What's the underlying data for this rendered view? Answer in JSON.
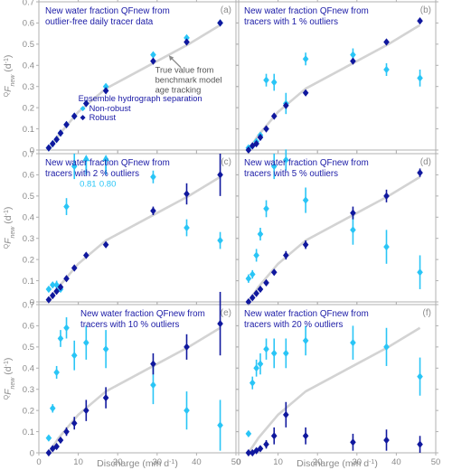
{
  "figure": {
    "y_axis_label": "Fnew (d-1)",
    "x_axis_label": "Discharge (mm d",
    "x_axis_label_sup": "-1",
    "x_axis_label_close": ")",
    "colors": {
      "true_line": "#d3d3d3",
      "non_robust": "#29c5f6",
      "robust": "#10189e",
      "title_text": "#1a1aa6",
      "axis": "#b0b0b0",
      "tick_text": "#8a8a8a",
      "annotation_text": "#555555"
    }
  },
  "chart_data": [
    {
      "type": "scatter",
      "panel": "(a)",
      "title_lines": [
        "New water fraction QFnew from",
        "outlier-free daily tracer data"
      ],
      "xlim": [
        0,
        50
      ],
      "ylim": [
        0,
        0.7
      ],
      "xticks": [
        0,
        10,
        20,
        30,
        40,
        50
      ],
      "yticks": [
        0,
        0.1,
        0.2,
        0.3,
        0.4,
        0.5,
        0.6,
        0.7
      ],
      "annotations": [
        "True value from",
        "benchmark model",
        "age tracking"
      ],
      "legend": {
        "title": "Ensemble hydrograph separation",
        "entries": [
          "Non-robust",
          "Robust"
        ]
      },
      "true_value": {
        "x": [
          2.5,
          5,
          10,
          17,
          29,
          38,
          46
        ],
        "y": [
          0.0,
          0.07,
          0.18,
          0.29,
          0.41,
          0.5,
          0.59
        ]
      },
      "series": [
        {
          "name": "Non-robust",
          "x": [
            2.5,
            3.5,
            4.5,
            5.5,
            7,
            9,
            12,
            17,
            29,
            37.5,
            46
          ],
          "y": [
            0.01,
            0.03,
            0.05,
            0.08,
            0.12,
            0.16,
            0.22,
            0.3,
            0.45,
            0.53,
            0.6
          ],
          "err": [
            0,
            0,
            0,
            0,
            0,
            0,
            0,
            0,
            0,
            0,
            0
          ]
        },
        {
          "name": "Robust",
          "x": [
            2.5,
            3.5,
            4.5,
            5.5,
            7,
            9,
            12,
            17,
            29,
            37.5,
            46
          ],
          "y": [
            0.01,
            0.03,
            0.05,
            0.08,
            0.12,
            0.16,
            0.22,
            0.28,
            0.42,
            0.51,
            0.6
          ],
          "err": [
            0,
            0,
            0,
            0,
            0,
            0,
            0,
            0,
            0,
            0.01,
            0.01
          ]
        }
      ]
    },
    {
      "type": "scatter",
      "panel": "(b)",
      "title_lines": [
        "New water fraction QFnew from",
        "tracers with 1 % outliers"
      ],
      "xlim": [
        0,
        50
      ],
      "ylim": [
        0,
        0.7
      ],
      "xticks": [
        0,
        10,
        20,
        30,
        40,
        50
      ],
      "yticks": [
        0,
        0.1,
        0.2,
        0.3,
        0.4,
        0.5,
        0.6,
        0.7
      ],
      "true_value": {
        "x": [
          2.5,
          5,
          10,
          17,
          29,
          38,
          46
        ],
        "y": [
          0.0,
          0.07,
          0.18,
          0.29,
          0.41,
          0.5,
          0.59
        ]
      },
      "series": [
        {
          "name": "Non-robust",
          "x": [
            2.5,
            3.5,
            4.5,
            5.5,
            7,
            9,
            12,
            17,
            29,
            37.5,
            46
          ],
          "y": [
            0.01,
            0.02,
            0.04,
            0.07,
            0.33,
            0.32,
            0.22,
            0.43,
            0.45,
            0.38,
            0.34
          ],
          "err": [
            0,
            0,
            0,
            0.01,
            0.03,
            0.04,
            0.05,
            0.03,
            0.03,
            0.03,
            0.04
          ]
        },
        {
          "name": "Robust",
          "x": [
            2.5,
            3.5,
            4.5,
            5.5,
            7,
            9,
            12,
            17,
            29,
            37.5,
            46
          ],
          "y": [
            0.0,
            0.02,
            0.03,
            0.06,
            0.1,
            0.16,
            0.21,
            0.27,
            0.42,
            0.51,
            0.61
          ],
          "err": [
            0,
            0,
            0,
            0.01,
            0.01,
            0.01,
            0.01,
            0.01,
            0.01,
            0.01,
            0.01
          ]
        }
      ]
    },
    {
      "type": "scatter",
      "panel": "(c)",
      "title_lines": [
        "New water fraction QFnew from",
        "tracers with 2 % outliers"
      ],
      "xlim": [
        0,
        50
      ],
      "ylim": [
        0,
        0.7
      ],
      "xticks": [
        0,
        10,
        20,
        30,
        40,
        50
      ],
      "yticks": [
        0,
        0.1,
        0.2,
        0.3,
        0.4,
        0.5,
        0.6,
        0.7
      ],
      "offscale": [
        {
          "x": 12,
          "label": "0.81"
        },
        {
          "x": 17,
          "label": "0.80"
        }
      ],
      "true_value": {
        "x": [
          2.5,
          5,
          10,
          17,
          29,
          38,
          46
        ],
        "y": [
          0.0,
          0.07,
          0.18,
          0.29,
          0.41,
          0.5,
          0.59
        ]
      },
      "series": [
        {
          "name": "Non-robust",
          "x": [
            2.5,
            3.5,
            4.5,
            5.5,
            7,
            9,
            29,
            37.5,
            46
          ],
          "y": [
            0.06,
            0.08,
            0.08,
            0.06,
            0.45,
            0.64,
            0.59,
            0.35,
            0.29
          ],
          "err": [
            0,
            0.01,
            0.02,
            0.01,
            0.04,
            0.06,
            0.03,
            0.04,
            0.04
          ]
        },
        {
          "name": "Robust",
          "x": [
            2.5,
            3.5,
            4.5,
            5.5,
            7,
            9,
            12,
            17,
            29,
            37.5,
            46
          ],
          "y": [
            0.01,
            0.03,
            0.05,
            0.07,
            0.11,
            0.16,
            0.22,
            0.27,
            0.43,
            0.51,
            0.6
          ],
          "err": [
            0,
            0,
            0,
            0.01,
            0.01,
            0.01,
            0.01,
            0.01,
            0.02,
            0.05,
            0.1
          ]
        }
      ]
    },
    {
      "type": "scatter",
      "panel": "(d)",
      "title_lines": [
        "New water fraction QFnew from",
        "tracers with 5 % outliers"
      ],
      "xlim": [
        0,
        50
      ],
      "ylim": [
        0,
        0.7
      ],
      "xticks": [
        0,
        10,
        20,
        30,
        40,
        50
      ],
      "yticks": [
        0,
        0.1,
        0.2,
        0.3,
        0.4,
        0.5,
        0.6,
        0.7
      ],
      "true_value": {
        "x": [
          2.5,
          5,
          10,
          17,
          29,
          38,
          46
        ],
        "y": [
          0.0,
          0.07,
          0.18,
          0.29,
          0.41,
          0.5,
          0.59
        ]
      },
      "series": [
        {
          "name": "Non-robust",
          "x": [
            2.5,
            3.5,
            4.5,
            5.5,
            7,
            9,
            12,
            17,
            29,
            37.5,
            46
          ],
          "y": [
            0.11,
            0.13,
            0.22,
            0.32,
            0.44,
            0.64,
            0.67,
            0.48,
            0.34,
            0.26,
            0.14
          ],
          "err": [
            0.02,
            0.02,
            0.03,
            0.03,
            0.04,
            0.06,
            0.05,
            0.06,
            0.07,
            0.08,
            0.08
          ]
        },
        {
          "name": "Robust",
          "x": [
            2.5,
            3.5,
            4.5,
            5.5,
            7,
            9,
            12,
            17,
            29,
            37.5,
            46
          ],
          "y": [
            0.0,
            0.02,
            0.04,
            0.06,
            0.09,
            0.14,
            0.22,
            0.27,
            0.42,
            0.5,
            0.61
          ],
          "err": [
            0,
            0,
            0.01,
            0.01,
            0.01,
            0.01,
            0.02,
            0.02,
            0.03,
            0.03,
            0.02
          ]
        }
      ]
    },
    {
      "type": "scatter",
      "panel": "(e)",
      "title_lines": [
        "New water fraction QFnew from",
        "tracers with 10 % outliers"
      ],
      "xlim": [
        0,
        50
      ],
      "ylim": [
        0,
        0.7
      ],
      "xticks": [
        0,
        10,
        20,
        30,
        40,
        50
      ],
      "yticks": [
        0,
        0.1,
        0.2,
        0.3,
        0.4,
        0.5,
        0.6,
        0.7
      ],
      "true_value": {
        "x": [
          2.5,
          5,
          10,
          17,
          29,
          38,
          46
        ],
        "y": [
          0.0,
          0.07,
          0.18,
          0.29,
          0.41,
          0.5,
          0.59
        ]
      },
      "series": [
        {
          "name": "Non-robust",
          "x": [
            2.5,
            3.5,
            4.5,
            5.5,
            7,
            9,
            12,
            17,
            29,
            37.5,
            46
          ],
          "y": [
            0.07,
            0.21,
            0.38,
            0.54,
            0.59,
            0.46,
            0.52,
            0.49,
            0.32,
            0.2,
            0.13
          ],
          "err": [
            0,
            0.02,
            0.03,
            0.04,
            0.05,
            0.07,
            0.08,
            0.09,
            0.09,
            0.09,
            0.12
          ]
        },
        {
          "name": "Robust",
          "x": [
            2.5,
            3.5,
            4.5,
            5.5,
            7,
            9,
            12,
            17,
            29,
            37.5,
            46
          ],
          "y": [
            0.0,
            0.02,
            0.03,
            0.06,
            0.1,
            0.14,
            0.2,
            0.26,
            0.42,
            0.5,
            0.61
          ],
          "err": [
            0,
            0,
            0.01,
            0.01,
            0.02,
            0.03,
            0.05,
            0.05,
            0.05,
            0.06,
            0.15
          ]
        }
      ]
    },
    {
      "type": "scatter",
      "panel": "(f)",
      "title_lines": [
        "New water fraction QFnew from",
        "tracers with 20 % outliers"
      ],
      "xlim": [
        0,
        50
      ],
      "ylim": [
        0,
        0.7
      ],
      "xticks": [
        0,
        10,
        20,
        30,
        40,
        50
      ],
      "yticks": [
        0,
        0.1,
        0.2,
        0.3,
        0.4,
        0.5,
        0.6,
        0.7
      ],
      "true_value": {
        "x": [
          2.5,
          5,
          10,
          17,
          29,
          38,
          46
        ],
        "y": [
          0.0,
          0.07,
          0.18,
          0.29,
          0.41,
          0.5,
          0.59
        ]
      },
      "series": [
        {
          "name": "Non-robust",
          "x": [
            2.5,
            3.5,
            4.5,
            5.5,
            7,
            9,
            12,
            17,
            29,
            37.5,
            46
          ],
          "y": [
            0.09,
            0.33,
            0.4,
            0.42,
            0.49,
            0.47,
            0.47,
            0.53,
            0.52,
            0.5,
            0.36
          ],
          "err": [
            0,
            0.03,
            0.04,
            0.05,
            0.05,
            0.07,
            0.07,
            0.07,
            0.08,
            0.09,
            0.09
          ]
        },
        {
          "name": "Robust",
          "x": [
            2.5,
            3.5,
            4.5,
            5.5,
            7,
            9,
            12,
            17,
            29,
            37.5,
            46
          ],
          "y": [
            0.0,
            0.0,
            0.01,
            0.02,
            0.04,
            0.08,
            0.18,
            0.08,
            0.05,
            0.06,
            0.04
          ],
          "err": [
            0,
            0,
            0,
            0.01,
            0.02,
            0.04,
            0.06,
            0.04,
            0.04,
            0.05,
            0.04
          ]
        }
      ]
    }
  ]
}
